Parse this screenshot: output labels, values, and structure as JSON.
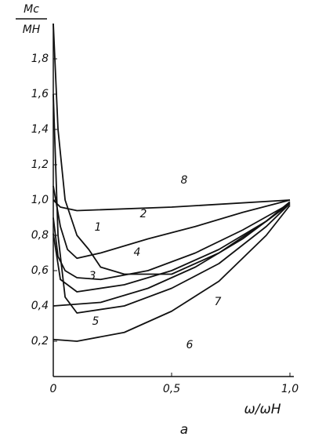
{
  "chart_data": {
    "type": "line",
    "y_label_top": "Mc",
    "y_label_bottom": "MН",
    "x_label": "ω/ωН",
    "caption": "a",
    "xlim": [
      0,
      1.0
    ],
    "ylim": [
      0,
      2.0
    ],
    "xticks": [
      0,
      {
        "value": 0.5,
        "label": "0,5"
      },
      {
        "value": 1.0,
        "label": "1,0"
      }
    ],
    "yticks": [
      {
        "value": 0.2,
        "label": "0,2"
      },
      {
        "value": 0.4,
        "label": "0,4"
      },
      {
        "value": 0.6,
        "label": "0,6"
      },
      {
        "value": 0.8,
        "label": "0,8"
      },
      {
        "value": 1.0,
        "label": "1,0"
      },
      {
        "value": 1.2,
        "label": "1,2"
      },
      {
        "value": 1.4,
        "label": "1,4"
      },
      {
        "value": 1.6,
        "label": "1,6"
      },
      {
        "value": 1.8,
        "label": "1,8"
      }
    ],
    "series": [
      {
        "name": "1",
        "color": "#111",
        "x": [
          0,
          0.02,
          0.05,
          0.1,
          0.15,
          0.2,
          0.3,
          0.5,
          0.7,
          0.9,
          1.0
        ],
        "values": [
          2.0,
          1.4,
          1.0,
          0.8,
          0.72,
          0.62,
          0.58,
          0.58,
          0.7,
          0.88,
          0.99
        ]
      },
      {
        "name": "2",
        "color": "#111",
        "x": [
          0,
          0.03,
          0.06,
          0.1,
          0.2,
          0.4,
          0.6,
          0.8,
          1.0
        ],
        "values": [
          1.08,
          0.85,
          0.72,
          0.67,
          0.7,
          0.78,
          0.85,
          0.93,
          1.0
        ]
      },
      {
        "name": "3",
        "color": "#111",
        "x": [
          0,
          0.02,
          0.05,
          0.1,
          0.2,
          0.4,
          0.6,
          0.8,
          1.0
        ],
        "values": [
          0.9,
          0.68,
          0.6,
          0.56,
          0.55,
          0.6,
          0.7,
          0.83,
          0.98
        ]
      },
      {
        "name": "4",
        "color": "#111",
        "x": [
          0,
          0.03,
          0.1,
          0.3,
          0.5,
          0.7,
          0.9,
          1.0
        ],
        "values": [
          0.81,
          0.55,
          0.48,
          0.52,
          0.6,
          0.72,
          0.88,
          0.98
        ]
      },
      {
        "name": "5",
        "color": "#111",
        "x": [
          0,
          0.02,
          0.05,
          0.1,
          0.3,
          0.5,
          0.7,
          0.9,
          1.0
        ],
        "values": [
          1.6,
          0.8,
          0.45,
          0.36,
          0.4,
          0.5,
          0.64,
          0.85,
          0.98
        ]
      },
      {
        "name": "6",
        "color": "#111",
        "x": [
          0,
          0.1,
          0.3,
          0.5,
          0.7,
          0.9,
          1.0
        ],
        "values": [
          0.21,
          0.2,
          0.25,
          0.37,
          0.54,
          0.8,
          0.97
        ]
      },
      {
        "name": "7",
        "color": "#111",
        "x": [
          0,
          0.2,
          0.4,
          0.6,
          0.8,
          1.0
        ],
        "values": [
          0.4,
          0.42,
          0.5,
          0.62,
          0.78,
          0.98
        ]
      },
      {
        "name": "8",
        "color": "#111",
        "x": [
          0,
          0.03,
          0.1,
          0.5,
          1.0
        ],
        "values": [
          1.0,
          0.96,
          0.94,
          0.96,
          1.0
        ]
      }
    ]
  }
}
